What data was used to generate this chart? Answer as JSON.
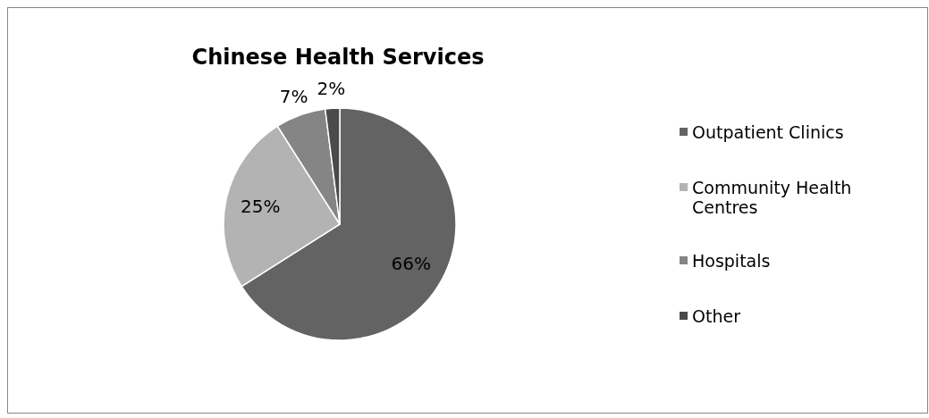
{
  "chart_data": {
    "type": "pie",
    "title": "Chinese Health Services",
    "categories": [
      "Outpatient Clinics",
      "Community Health Centres",
      "Hospitals",
      "Other"
    ],
    "values": [
      66,
      25,
      7,
      2
    ],
    "colors": [
      "#636363",
      "#b3b3b3",
      "#858585",
      "#4a4a4a"
    ],
    "value_labels": [
      "66%",
      "25%",
      "7%",
      "2%"
    ],
    "legend": "right"
  }
}
